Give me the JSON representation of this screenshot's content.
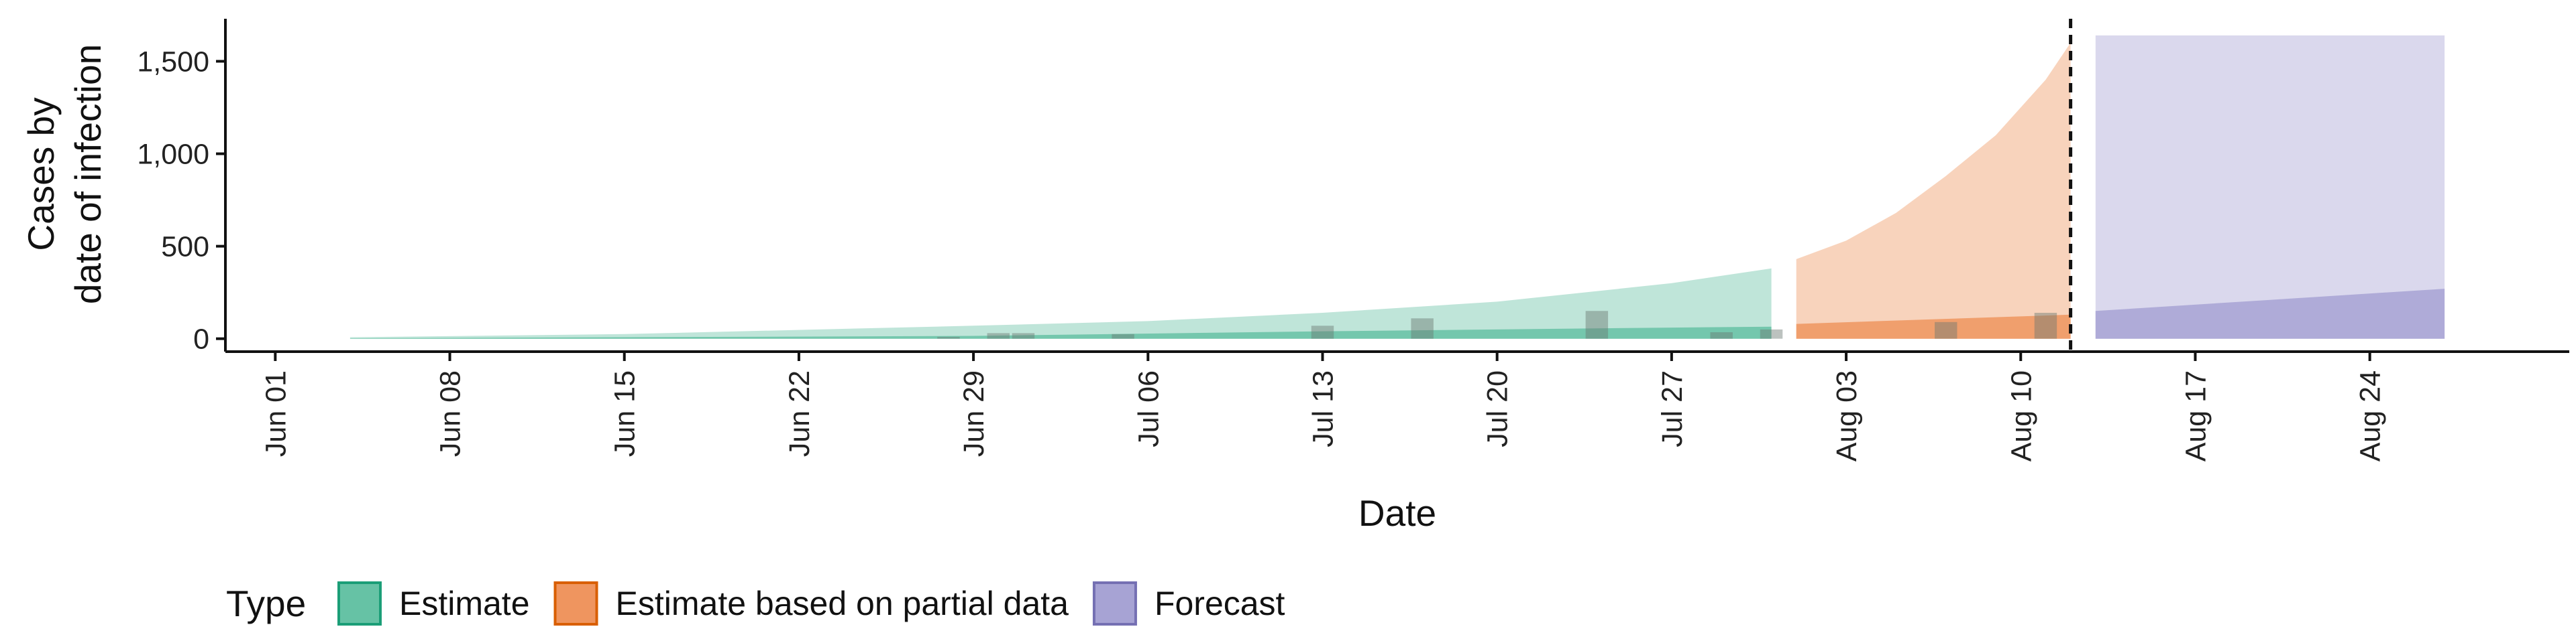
{
  "chart_data": {
    "type": "area",
    "xlabel": "Date",
    "ylabel_line1": "Cases by",
    "ylabel_line2": "date of infection",
    "ylim": [
      -70,
      1730
    ],
    "y_ticks": [
      0,
      500,
      1000,
      1500
    ],
    "y_tick_labels": [
      "0",
      "500",
      "1,000",
      "1,500"
    ],
    "x_ticks": [
      "2020-06-01",
      "2020-06-08",
      "2020-06-15",
      "2020-06-22",
      "2020-06-29",
      "2020-07-06",
      "2020-07-13",
      "2020-07-20",
      "2020-07-27",
      "2020-08-03",
      "2020-08-10",
      "2020-08-17",
      "2020-08-24"
    ],
    "x_tick_labels": [
      "Jun 01",
      "Jun 08",
      "Jun 15",
      "Jun 22",
      "Jun 29",
      "Jul 06",
      "Jul 13",
      "Jul 20",
      "Jul 27",
      "Aug 03",
      "Aug 10",
      "Aug 17",
      "Aug 24"
    ],
    "xlim": [
      "2020-05-30",
      "2020-09-01"
    ],
    "vline_date": "2020-08-12",
    "grid": false,
    "legend_position": "bottom-left",
    "legend_title": "Type",
    "series": [
      {
        "name": "Estimate",
        "color": "#1b9e77",
        "fill": "#66c2a5",
        "bands": [
          {
            "dates": [
              "2020-06-04",
              "2020-06-15",
              "2020-06-29",
              "2020-07-06",
              "2020-07-13",
              "2020-07-20",
              "2020-07-27",
              "2020-07-31"
            ],
            "upper": [
              8,
              25,
              70,
              95,
              140,
              200,
              300,
              380
            ],
            "lower": [
              0,
              0,
              0,
              0,
              0,
              0,
              0,
              0
            ]
          },
          {
            "dates": [
              "2020-06-04",
              "2020-06-29",
              "2020-07-13",
              "2020-07-27",
              "2020-07-31"
            ],
            "upper": [
              2,
              15,
              40,
              60,
              65
            ],
            "lower": [
              0,
              0,
              0,
              0,
              0
            ]
          }
        ]
      },
      {
        "name": "Estimate based on partial data",
        "color": "#d95f02",
        "fill": "#ef955f",
        "bands": [
          {
            "dates": [
              "2020-08-01",
              "2020-08-03",
              "2020-08-05",
              "2020-08-07",
              "2020-08-09",
              "2020-08-11",
              "2020-08-12"
            ],
            "upper": [
              430,
              530,
              680,
              880,
              1100,
              1400,
              1600
            ],
            "lower": [
              0,
              0,
              0,
              0,
              0,
              0,
              0
            ]
          },
          {
            "dates": [
              "2020-08-01",
              "2020-08-12"
            ],
            "upper": [
              80,
              130
            ],
            "lower": [
              0,
              0
            ]
          }
        ]
      },
      {
        "name": "Forecast",
        "color": "#7570b3",
        "fill": "#a7a3d4",
        "bands": [
          {
            "dates": [
              "2020-08-13",
              "2020-08-27"
            ],
            "upper": [
              1640,
              1640
            ],
            "lower": [
              0,
              0
            ]
          },
          {
            "dates": [
              "2020-08-13",
              "2020-08-20",
              "2020-08-27"
            ],
            "upper": [
              150,
              210,
              270
            ],
            "lower": [
              0,
              0,
              0
            ]
          }
        ]
      }
    ],
    "observed_cases": {
      "dates": [
        "2020-06-28",
        "2020-06-30",
        "2020-07-01",
        "2020-07-05",
        "2020-07-13",
        "2020-07-17",
        "2020-07-24",
        "2020-07-29",
        "2020-07-31",
        "2020-08-07",
        "2020-08-11"
      ],
      "values": [
        10,
        30,
        30,
        25,
        70,
        110,
        150,
        35,
        50,
        90,
        140
      ]
    }
  }
}
